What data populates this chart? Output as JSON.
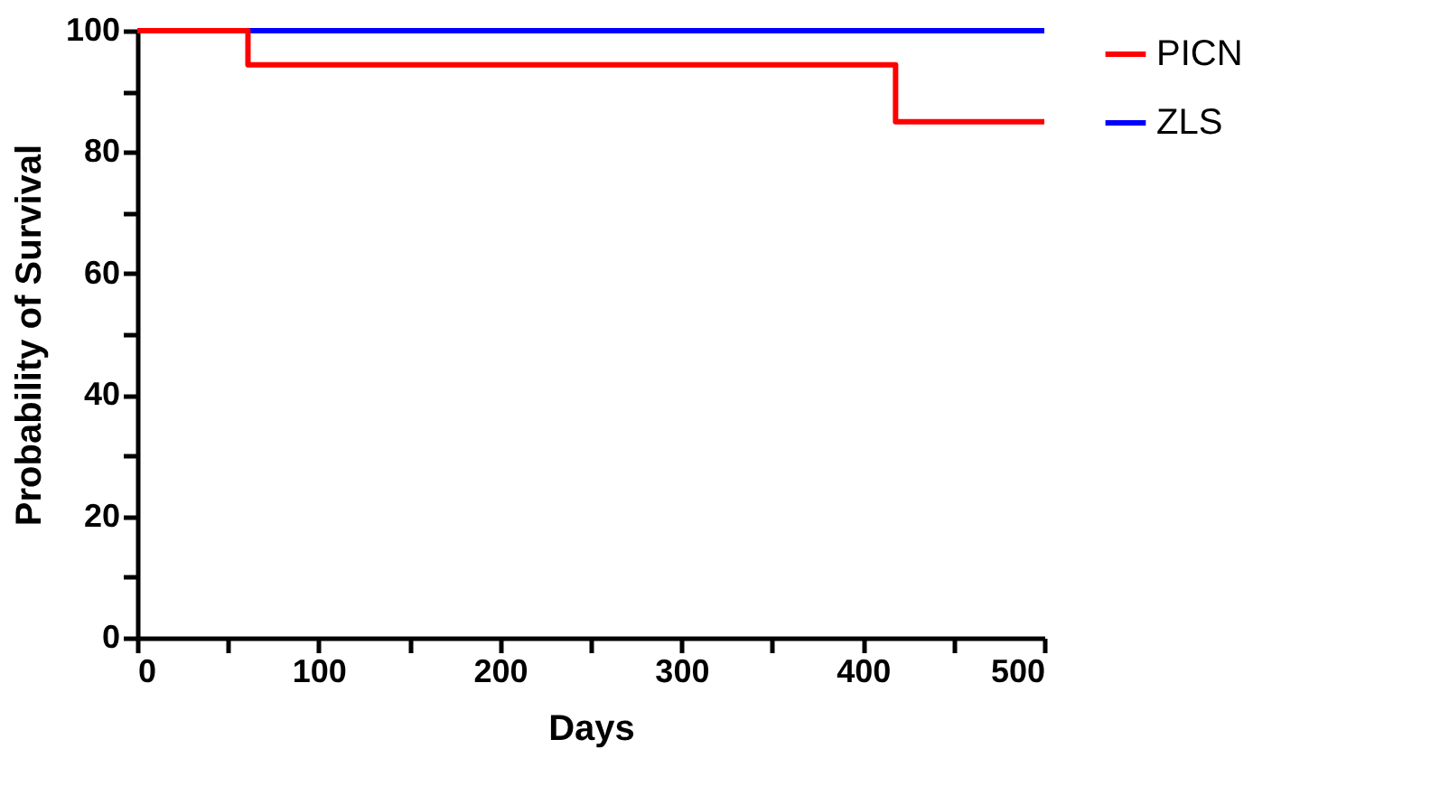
{
  "chart_data": {
    "type": "step",
    "xlabel": "Days",
    "ylabel": "Probability of Survival",
    "series": [
      {
        "name": "PICN",
        "color": "#ff0000",
        "x": [
          0,
          61,
          418,
          500
        ],
        "values": [
          100,
          94.4,
          85,
          85
        ]
      },
      {
        "name": "ZLS",
        "color": "#0000ff",
        "x": [
          0,
          500
        ],
        "values": [
          100,
          100
        ]
      }
    ],
    "xlim": [
      0,
      500
    ],
    "xticks": [
      0,
      {
        "value": 50,
        "label": null
      },
      100,
      {
        "value": 150,
        "label": null
      },
      200,
      {
        "value": 250,
        "label": null
      },
      300,
      {
        "value": 350,
        "label": null
      },
      400,
      {
        "value": 450,
        "label": null
      },
      500
    ],
    "ylim": [
      0,
      100
    ],
    "yticks": [
      0,
      {
        "value": 10,
        "label": null
      },
      20,
      {
        "value": 30,
        "label": null
      },
      40,
      {
        "value": 50,
        "label": null
      },
      60,
      {
        "value": 70,
        "label": null
      },
      80,
      {
        "value": 90,
        "label": null
      },
      100
    ],
    "grid": false,
    "legend": "top right",
    "marker": "none",
    "line_style": "solid"
  }
}
